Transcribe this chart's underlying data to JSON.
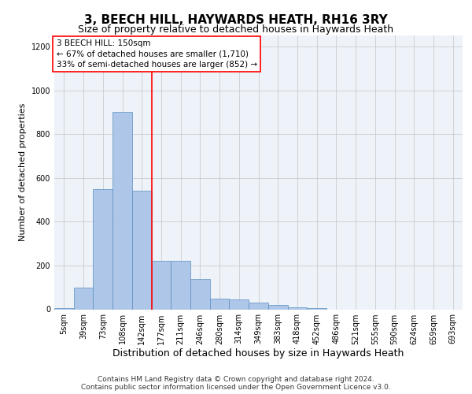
{
  "title1": "3, BEECH HILL, HAYWARDS HEATH, RH16 3RY",
  "title2": "Size of property relative to detached houses in Haywards Heath",
  "xlabel": "Distribution of detached houses by size in Haywards Heath",
  "ylabel": "Number of detached properties",
  "categories": [
    "5sqm",
    "39sqm",
    "73sqm",
    "108sqm",
    "142sqm",
    "177sqm",
    "211sqm",
    "246sqm",
    "280sqm",
    "314sqm",
    "349sqm",
    "383sqm",
    "418sqm",
    "452sqm",
    "486sqm",
    "521sqm",
    "555sqm",
    "590sqm",
    "624sqm",
    "659sqm",
    "693sqm"
  ],
  "values": [
    5,
    100,
    550,
    900,
    540,
    220,
    220,
    140,
    50,
    45,
    30,
    20,
    10,
    5,
    0,
    0,
    0,
    0,
    0,
    0,
    0
  ],
  "bar_color": "#aec6e8",
  "bar_edge_color": "#5a8fc0",
  "background_color": "#eef2f9",
  "grid_color": "#cccccc",
  "annotation_text": "3 BEECH HILL: 150sqm\n← 67% of detached houses are smaller (1,710)\n33% of semi-detached houses are larger (852) →",
  "red_line_x": 4.5,
  "ylim": [
    0,
    1250
  ],
  "yticks": [
    0,
    200,
    400,
    600,
    800,
    1000,
    1200
  ],
  "footer": "Contains HM Land Registry data © Crown copyright and database right 2024.\nContains public sector information licensed under the Open Government Licence v3.0.",
  "title1_fontsize": 11,
  "title2_fontsize": 9,
  "xlabel_fontsize": 9,
  "ylabel_fontsize": 8,
  "tick_fontsize": 7,
  "annot_fontsize": 7.5,
  "footer_fontsize": 6.5
}
